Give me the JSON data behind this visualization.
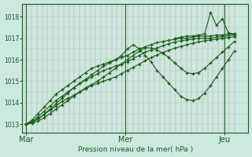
{
  "xlabel": "Pression niveau de la mer( hPa )",
  "bg_color": "#cce8e0",
  "line_color": "#1a5c1a",
  "grid_color_v": "#cc8888",
  "grid_color_h": "#aaccaa",
  "day_line_color": "#336633",
  "ylim": [
    1012.6,
    1018.6
  ],
  "yticks": [
    1013,
    1014,
    1015,
    1016,
    1017,
    1018
  ],
  "xtick_labels": [
    "Mar",
    "Mer",
    "Jeu"
  ],
  "xtick_positions": [
    0,
    0.5,
    1.0
  ],
  "series": [
    {
      "x": [
        0.0,
        0.03,
        0.06,
        0.09,
        0.12,
        0.15,
        0.18,
        0.21,
        0.24,
        0.27,
        0.3,
        0.33,
        0.36,
        0.39,
        0.42,
        0.45,
        0.48,
        0.51,
        0.54,
        0.57,
        0.6,
        0.63,
        0.66,
        0.69,
        0.72,
        0.75,
        0.78,
        0.81,
        0.84,
        0.87,
        0.9,
        0.93,
        0.96,
        0.99,
        1.02,
        1.05
      ],
      "y": [
        1013.0,
        1013.2,
        1013.5,
        1013.8,
        1014.1,
        1014.4,
        1014.6,
        1014.8,
        1015.0,
        1015.2,
        1015.4,
        1015.6,
        1015.7,
        1015.8,
        1015.9,
        1016.0,
        1016.1,
        1016.2,
        1016.35,
        1016.5,
        1016.6,
        1016.7,
        1016.8,
        1016.85,
        1016.9,
        1016.95,
        1017.0,
        1017.0,
        1017.05,
        1017.1,
        1017.1,
        1017.1,
        1017.15,
        1017.15,
        1017.2,
        1017.2
      ]
    },
    {
      "x": [
        0.0,
        0.03,
        0.06,
        0.09,
        0.12,
        0.15,
        0.18,
        0.21,
        0.24,
        0.27,
        0.3,
        0.33,
        0.36,
        0.39,
        0.42,
        0.45,
        0.48,
        0.51,
        0.54,
        0.57,
        0.6,
        0.63,
        0.66,
        0.69,
        0.72,
        0.75,
        0.78,
        0.81,
        0.84,
        0.87,
        0.9,
        0.93,
        0.96,
        0.99,
        1.02,
        1.05
      ],
      "y": [
        1013.0,
        1013.15,
        1013.35,
        1013.6,
        1013.85,
        1014.1,
        1014.3,
        1014.5,
        1014.7,
        1014.9,
        1015.05,
        1015.2,
        1015.35,
        1015.5,
        1015.6,
        1015.7,
        1015.8,
        1015.9,
        1016.05,
        1016.2,
        1016.35,
        1016.45,
        1016.55,
        1016.65,
        1016.75,
        1016.82,
        1016.88,
        1016.92,
        1016.96,
        1017.0,
        1017.0,
        1017.0,
        1017.05,
        1017.08,
        1017.12,
        1017.15
      ]
    },
    {
      "x": [
        0.0,
        0.03,
        0.06,
        0.09,
        0.12,
        0.15,
        0.18,
        0.21,
        0.24,
        0.27,
        0.3,
        0.33,
        0.36,
        0.39,
        0.42,
        0.45,
        0.48,
        0.51,
        0.54,
        0.57,
        0.6,
        0.63,
        0.66,
        0.69,
        0.72,
        0.75,
        0.78,
        0.81,
        0.84,
        0.87,
        0.9,
        0.93,
        0.96,
        0.99,
        1.02,
        1.05
      ],
      "y": [
        1013.0,
        1013.1,
        1013.25,
        1013.45,
        1013.65,
        1013.85,
        1014.05,
        1014.2,
        1014.35,
        1014.5,
        1014.65,
        1014.8,
        1014.9,
        1015.0,
        1015.1,
        1015.2,
        1015.35,
        1015.5,
        1015.65,
        1015.8,
        1015.95,
        1016.1,
        1016.22,
        1016.34,
        1016.44,
        1016.54,
        1016.62,
        1016.7,
        1016.77,
        1016.83,
        1016.88,
        1016.92,
        1016.96,
        1017.0,
        1017.03,
        1017.07
      ]
    },
    {
      "x": [
        0.0,
        0.03,
        0.06,
        0.09,
        0.12,
        0.15,
        0.18,
        0.21,
        0.24,
        0.27,
        0.3,
        0.33,
        0.36,
        0.39,
        0.42,
        0.45,
        0.48,
        0.51,
        0.54,
        0.57,
        0.6,
        0.63,
        0.66,
        0.69,
        0.72,
        0.75,
        0.78,
        0.81,
        0.84,
        0.87,
        0.9,
        0.93,
        0.96,
        0.99,
        1.02,
        1.05
      ],
      "y": [
        1013.0,
        1013.1,
        1013.25,
        1013.45,
        1013.7,
        1013.95,
        1014.2,
        1014.45,
        1014.7,
        1014.9,
        1015.1,
        1015.3,
        1015.5,
        1015.7,
        1015.85,
        1016.0,
        1016.2,
        1016.5,
        1016.7,
        1016.5,
        1016.2,
        1015.9,
        1015.5,
        1015.2,
        1014.9,
        1014.6,
        1014.3,
        1014.15,
        1014.1,
        1014.2,
        1014.45,
        1014.8,
        1015.2,
        1015.6,
        1016.0,
        1016.4
      ]
    },
    {
      "x": [
        0.0,
        0.03,
        0.06,
        0.09,
        0.12,
        0.15,
        0.18,
        0.21,
        0.24,
        0.27,
        0.3,
        0.33,
        0.36,
        0.39,
        0.42,
        0.45,
        0.48,
        0.51,
        0.54,
        0.57,
        0.6,
        0.63,
        0.66,
        0.69,
        0.72,
        0.75,
        0.78,
        0.81,
        0.84,
        0.87,
        0.9,
        0.93,
        0.96,
        0.99,
        1.02,
        1.05
      ],
      "y": [
        1013.0,
        1013.05,
        1013.15,
        1013.3,
        1013.5,
        1013.7,
        1013.9,
        1014.1,
        1014.3,
        1014.5,
        1014.7,
        1014.85,
        1015.0,
        1015.2,
        1015.4,
        1015.6,
        1015.8,
        1016.0,
        1016.2,
        1016.4,
        1016.55,
        1016.55,
        1016.45,
        1016.3,
        1016.1,
        1015.85,
        1015.6,
        1015.4,
        1015.35,
        1015.4,
        1015.6,
        1015.85,
        1016.1,
        1016.35,
        1016.6,
        1016.85
      ]
    },
    {
      "x": [
        0.75,
        0.78,
        0.81,
        0.84,
        0.87,
        0.9,
        0.93,
        0.96,
        0.99,
        1.02,
        1.05
      ],
      "y": [
        1017.0,
        1017.05,
        1017.1,
        1017.1,
        1017.15,
        1017.2,
        1018.2,
        1017.6,
        1017.9,
        1017.25,
        1017.2
      ]
    }
  ]
}
